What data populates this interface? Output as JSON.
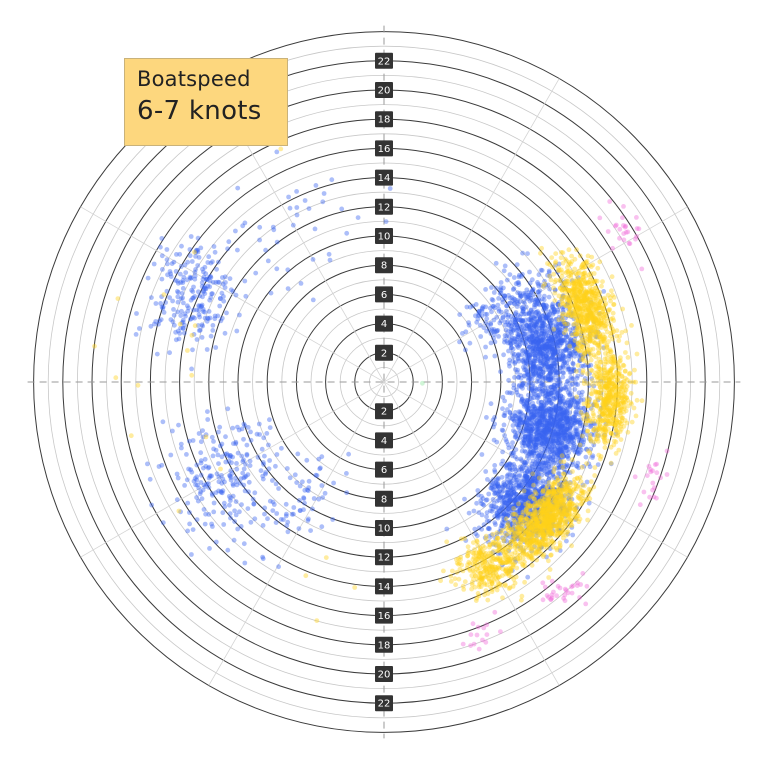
{
  "badge": {
    "title": "Boatspeed",
    "value": "6-7 knots",
    "color": "#fdd77e"
  },
  "chart_data": {
    "type": "scatter",
    "projection": "polar",
    "center_point_unit": "knots",
    "radial_max": 24,
    "ring_step": 1,
    "radial_tick_labels": [
      2,
      4,
      6,
      8,
      10,
      12,
      14,
      16,
      18,
      20,
      22
    ],
    "tick_label_background": "#333333",
    "grid": true,
    "axis_lines": [
      "horizontal-dashed",
      "vertical-dashed",
      "diagonal-light"
    ],
    "series": [
      {
        "color": "#3a64f0",
        "clusters": [
          {
            "angle_center": 78,
            "angle_spread": 14,
            "radius_center": 11.5,
            "radius_spread": 2.4,
            "count": 900
          },
          {
            "angle_center": 105,
            "angle_spread": 12,
            "radius_center": 11.8,
            "radius_spread": 2.6,
            "count": 1100
          },
          {
            "angle_center": 130,
            "angle_spread": 12,
            "radius_center": 12.8,
            "radius_spread": 2.5,
            "count": 900
          },
          {
            "angle_center": 60,
            "angle_spread": 10,
            "radius_center": 10.5,
            "radius_spread": 3.5,
            "count": 250
          },
          {
            "angle_center": 295,
            "angle_spread": 12,
            "radius_center": 14.5,
            "radius_spread": 2.5,
            "count": 230
          },
          {
            "angle_center": 240,
            "angle_spread": 15,
            "radius_center": 13,
            "radius_spread": 3.5,
            "count": 230
          },
          {
            "angle_center": 215,
            "angle_spread": 12,
            "radius_center": 10,
            "radius_spread": 3,
            "count": 60
          },
          {
            "angle_center": 330,
            "angle_spread": 20,
            "radius_center": 13,
            "radius_spread": 4,
            "count": 40
          }
        ]
      },
      {
        "color": "#ffd21a",
        "clusters": [
          {
            "angle_center": 70,
            "angle_spread": 12,
            "radius_center": 14.8,
            "radius_spread": 1.4,
            "count": 700
          },
          {
            "angle_center": 95,
            "angle_spread": 10,
            "radius_center": 15.5,
            "radius_spread": 1.4,
            "count": 500
          },
          {
            "angle_center": 130,
            "angle_spread": 11,
            "radius_center": 14.6,
            "radius_spread": 1.5,
            "count": 900
          },
          {
            "angle_center": 150,
            "angle_spread": 8,
            "radius_center": 14.5,
            "radius_spread": 1.8,
            "count": 300
          },
          {
            "angle_center": 250,
            "angle_spread": 60,
            "radius_center": 16,
            "radius_spread": 4,
            "count": 20
          }
        ]
      },
      {
        "color": "#f06bd8",
        "clusters": [
          {
            "angle_center": 58,
            "angle_spread": 5,
            "radius_center": 19.5,
            "radius_spread": 1.2,
            "count": 25
          },
          {
            "angle_center": 110,
            "angle_spread": 5,
            "radius_center": 19.5,
            "radius_spread": 0.8,
            "count": 20
          },
          {
            "angle_center": 140,
            "angle_spread": 4,
            "radius_center": 19,
            "radius_spread": 1.2,
            "count": 30
          },
          {
            "angle_center": 158,
            "angle_spread": 6,
            "radius_center": 18.5,
            "radius_spread": 1,
            "count": 15
          }
        ]
      },
      {
        "color": "#90e8a0",
        "clusters": [
          {
            "angle_center": 95,
            "angle_spread": 3,
            "radius_center": 2.6,
            "radius_spread": 0.1,
            "count": 1
          }
        ]
      }
    ]
  }
}
